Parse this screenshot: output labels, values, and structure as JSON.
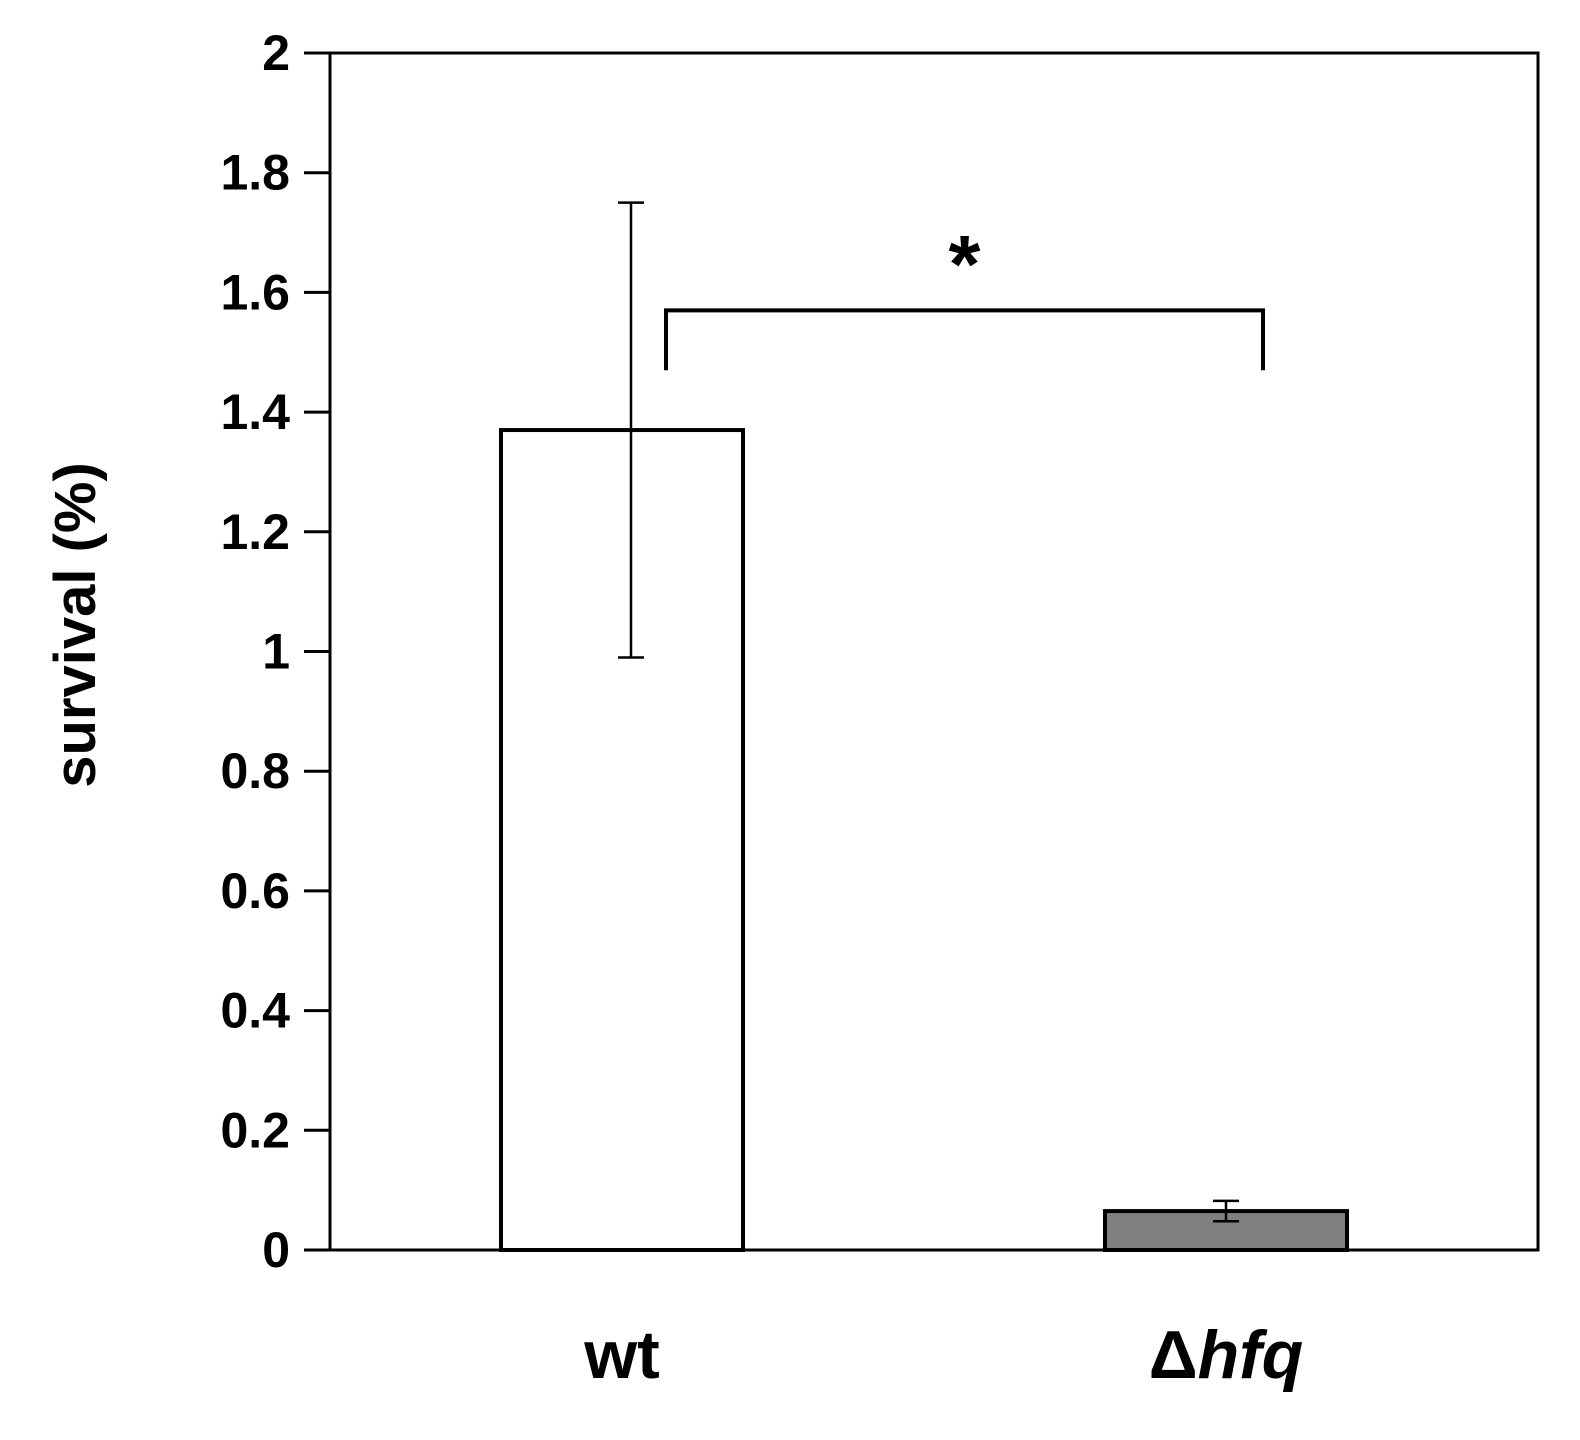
{
  "chart_data": {
    "type": "bar",
    "categories": [
      {
        "prefix": "",
        "italic": "",
        "plain": "wt"
      },
      {
        "prefix": "Δ",
        "italic": "hfq",
        "plain": ""
      }
    ],
    "values": [
      1.37,
      0.065
    ],
    "error": [
      0.38,
      0.017
    ],
    "colors": [
      "#ffffff",
      "#808080"
    ],
    "ylabel": "survival (%)",
    "ylim": [
      0,
      2
    ],
    "yticks": [
      "0",
      "0.2",
      "0.4",
      "0.6",
      "0.8",
      "1",
      "1.2",
      "1.4",
      "1.6",
      "1.8",
      "2"
    ],
    "significance": {
      "label": "*",
      "between": [
        0,
        1
      ],
      "level": 1.57,
      "drop_to": 1.47
    },
    "grid": false,
    "legend": "none"
  }
}
